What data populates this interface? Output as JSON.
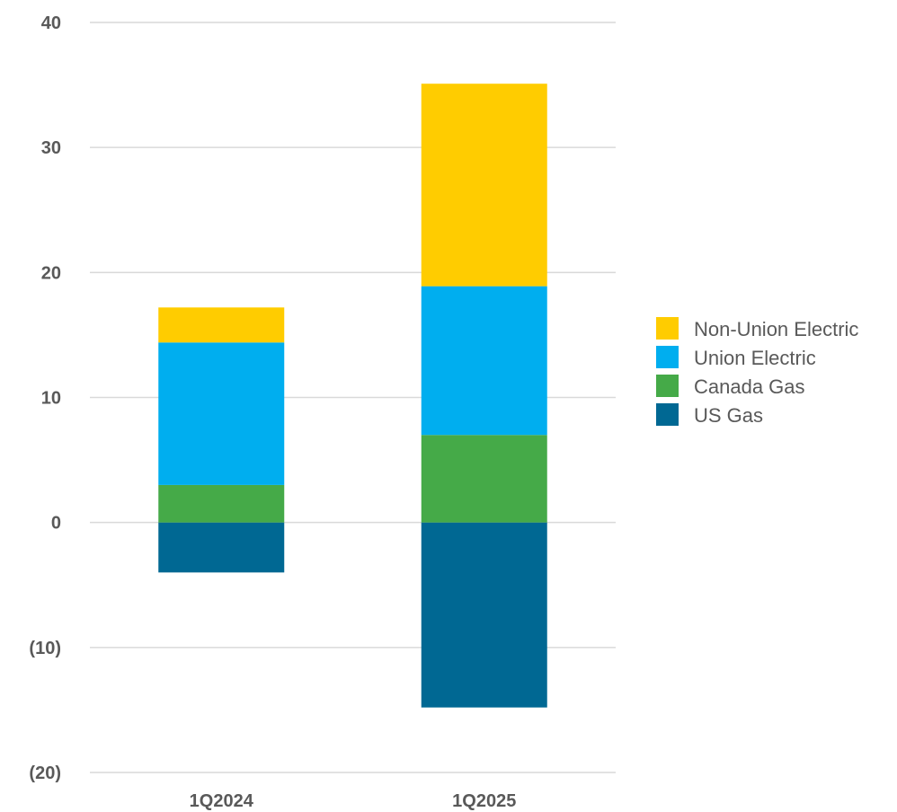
{
  "chart_data": {
    "type": "bar",
    "stacked": true,
    "categories": [
      "1Q2024",
      "1Q2025"
    ],
    "series": [
      {
        "name": "US Gas",
        "values": [
          -4,
          -14.8
        ],
        "color": "#006893"
      },
      {
        "name": "Canada Gas",
        "values": [
          3,
          7
        ],
        "color": "#45AA48"
      },
      {
        "name": "Union Electric",
        "values": [
          11.4,
          11.9
        ],
        "color": "#00AEEF"
      },
      {
        "name": "Non-Union Electric",
        "values": [
          2.8,
          16.2
        ],
        "color": "#FFCC00"
      }
    ],
    "yticks": [
      -20,
      -10,
      0,
      10,
      20,
      30,
      40
    ],
    "ytick_labels": [
      "(20)",
      "(10)",
      "0",
      "10",
      "20",
      "30",
      "40"
    ],
    "ylim": [
      -20,
      40
    ],
    "grid": true,
    "legend_position": "right",
    "legend_order": [
      "Non-Union Electric",
      "Union Electric",
      "Canada Gas",
      "US Gas"
    ]
  }
}
